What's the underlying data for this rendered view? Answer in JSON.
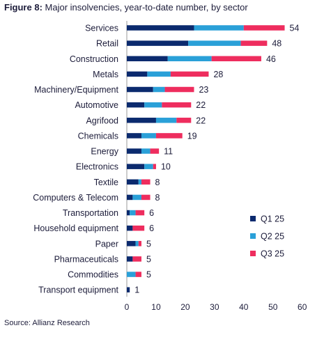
{
  "title_prefix": "Figure 8:",
  "title_rest": " Major insolvencies, year-to-date number, by sector",
  "source": "Source: Allianz Research",
  "chart_data": {
    "type": "bar",
    "orientation": "horizontal",
    "stacked": true,
    "categories": [
      "Services",
      "Retail",
      "Construction",
      "Metals",
      "Machinery/Equipment",
      "Automotive",
      "Agrifood",
      "Chemicals",
      "Energy",
      "Electronics",
      "Textile",
      "Computers & Telecom",
      "Transportation",
      "Household equipment",
      "Paper",
      "Pharmaceuticals",
      "Commodities",
      "Transport equipment"
    ],
    "totals": [
      54,
      48,
      46,
      28,
      23,
      22,
      22,
      19,
      11,
      10,
      8,
      8,
      6,
      6,
      5,
      5,
      5,
      1
    ],
    "series": [
      {
        "name": "Q1 25",
        "color": "#0b2a6e",
        "values": [
          23,
          21,
          14,
          7,
          9,
          6,
          10,
          5,
          5,
          6,
          4,
          2,
          1,
          2,
          3,
          2,
          0,
          1
        ]
      },
      {
        "name": "Q2 25",
        "color": "#2aa0d8",
        "values": [
          17,
          18,
          15,
          8,
          4,
          6,
          7,
          5,
          3,
          3,
          1,
          3,
          2,
          0,
          1,
          0,
          3,
          0
        ]
      },
      {
        "name": "Q3 25",
        "color": "#ee2d5e",
        "values": [
          14,
          9,
          17,
          13,
          10,
          10,
          5,
          9,
          3,
          1,
          3,
          3,
          3,
          4,
          1,
          3,
          2,
          0
        ]
      }
    ],
    "xlim": [
      0,
      60
    ],
    "xticks": [
      0,
      10,
      20,
      30,
      40,
      50,
      60
    ],
    "grid": false,
    "legend_position": "bottom-right"
  }
}
